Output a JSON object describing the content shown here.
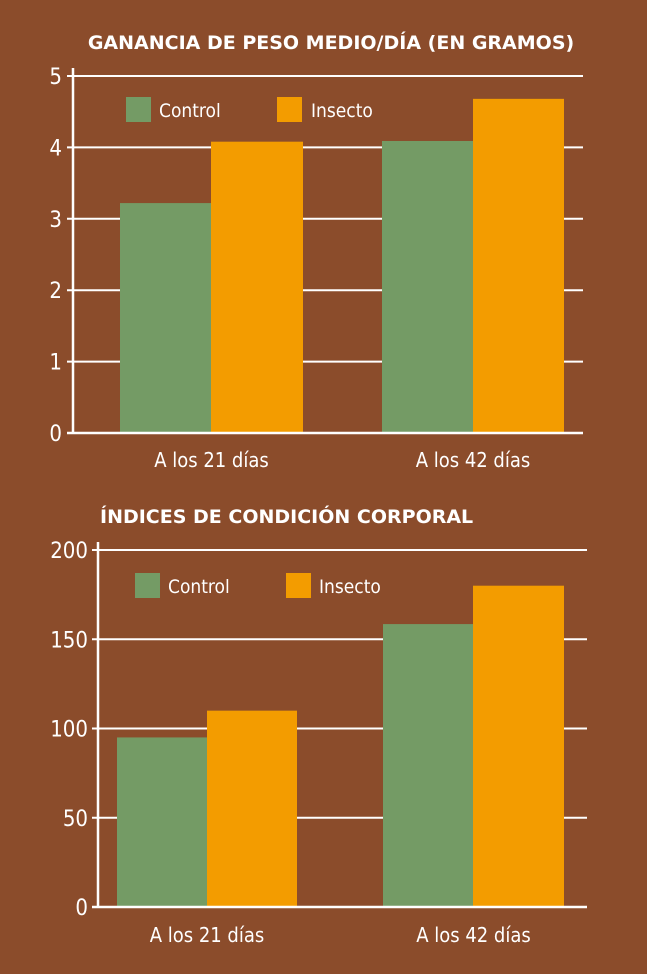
{
  "colors": {
    "background": "#8B4C2B",
    "control": "#749B65",
    "insecto": "#F39C00",
    "grid": "#FFFFFF"
  },
  "chart_data": [
    {
      "type": "bar",
      "title": "GANANCIA DE PESO MEDIO/DÍA (EN GRAMOS)",
      "xlabel": "",
      "ylabel": "",
      "categories": [
        "A los 21 días",
        "A los 42 días"
      ],
      "series": [
        {
          "name": "Control",
          "values": [
            3.22,
            4.09
          ]
        },
        {
          "name": "Insecto",
          "values": [
            4.08,
            4.68
          ]
        }
      ],
      "ylim": [
        0,
        5
      ],
      "yticks": [
        0,
        1,
        2,
        3,
        4,
        5
      ],
      "grid": true,
      "legend": "top-left"
    },
    {
      "type": "bar",
      "title": "ÍNDICES DE CONDICIÓN CORPORAL",
      "xlabel": "",
      "ylabel": "",
      "categories": [
        "A los 21 días",
        "A los 42 días"
      ],
      "series": [
        {
          "name": "Control",
          "values": [
            95,
            158.5
          ]
        },
        {
          "name": "Insecto",
          "values": [
            110,
            180
          ]
        }
      ],
      "ylim": [
        0,
        200
      ],
      "yticks": [
        0,
        50,
        100,
        150,
        200
      ],
      "grid": true,
      "legend": "top-left"
    }
  ]
}
